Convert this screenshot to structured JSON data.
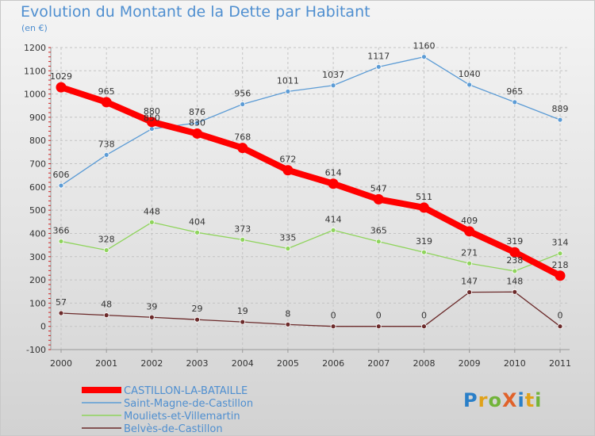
{
  "title": "Evolution du Montant de la Dette par Habitant",
  "unit": "(en €)",
  "logo": "ProXiti",
  "chart_data": {
    "type": "line",
    "title": "Evolution du Montant de la Dette par Habitant",
    "subtitle": "(en €)",
    "x": [
      "2000",
      "2001",
      "2002",
      "2003",
      "2004",
      "2005",
      "2006",
      "2007",
      "2008",
      "2009",
      "2010",
      "2011"
    ],
    "ylim": [
      -100,
      1200
    ],
    "yticks": [
      -100,
      0,
      100,
      200,
      300,
      400,
      500,
      600,
      700,
      800,
      900,
      1000,
      1100,
      1200
    ],
    "grid": true,
    "legend": "bottom",
    "series": [
      {
        "name": "CASTILLON-LA-BATAILLE",
        "color": "#ff0000",
        "values": [
          1029,
          965,
          880,
          830,
          768,
          672,
          614,
          547,
          511,
          409,
          319,
          218
        ]
      },
      {
        "name": "Saint-Magne-de-Castillon",
        "color": "#5b9bd5",
        "values": [
          606,
          738,
          850,
          876,
          956,
          1011,
          1037,
          1117,
          1160,
          1040,
          965,
          889
        ]
      },
      {
        "name": "Mouliets-et-Villemartin",
        "color": "#8fd45c",
        "values": [
          366,
          328,
          448,
          404,
          373,
          335,
          414,
          365,
          319,
          271,
          238,
          314
        ]
      },
      {
        "name": "Belvès-de-Castillon",
        "color": "#6b2a2a",
        "values": [
          57,
          48,
          39,
          29,
          19,
          8,
          0,
          0,
          0,
          147,
          148,
          0
        ]
      }
    ]
  }
}
